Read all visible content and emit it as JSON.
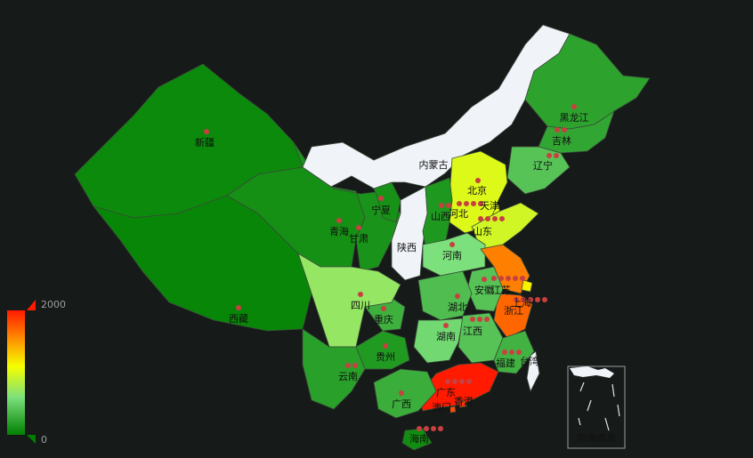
{
  "title": "",
  "colors": {
    "background": "#161a18",
    "range_high": "#ff1a00",
    "range_mid": "#f5ff00",
    "range_low": "#008000",
    "zero_value": "#f0f3f8",
    "dot": "#c84040"
  },
  "visual_map": {
    "max_label": "2000",
    "min_label": "0",
    "min": 0,
    "max": 2000,
    "placement": "bottom-left"
  },
  "inset": {
    "label": "南海诸岛"
  },
  "chart_data": {
    "type": "map",
    "region": "china",
    "provinces": [
      {
        "name": "新疆",
        "value": 60
      },
      {
        "name": "西藏",
        "value": 40
      },
      {
        "name": "青海",
        "value": 100
      },
      {
        "name": "甘肃",
        "value": 120
      },
      {
        "name": "宁夏",
        "value": 110
      },
      {
        "name": "内蒙古",
        "value": 0
      },
      {
        "name": "陕西",
        "value": 0
      },
      {
        "name": "黑龙江",
        "value": 220
      },
      {
        "name": "吉林",
        "value": 240
      },
      {
        "name": "辽宁",
        "value": 420
      },
      {
        "name": "北京",
        "value": 1100
      },
      {
        "name": "天津",
        "value": 1050
      },
      {
        "name": "河北",
        "value": 1000
      },
      {
        "name": "山西",
        "value": 150
      },
      {
        "name": "山东",
        "value": 950
      },
      {
        "name": "河南",
        "value": 600
      },
      {
        "name": "江苏",
        "value": 1600
      },
      {
        "name": "上海",
        "value": 1150
      },
      {
        "name": "浙江",
        "value": 1700
      },
      {
        "name": "安徽",
        "value": 420
      },
      {
        "name": "湖北",
        "value": 380
      },
      {
        "name": "湖南",
        "value": 550
      },
      {
        "name": "江西",
        "value": 420
      },
      {
        "name": "福建",
        "value": 320
      },
      {
        "name": "台湾",
        "value": 0
      },
      {
        "name": "广东",
        "value": 2000
      },
      {
        "name": "广西",
        "value": 280
      },
      {
        "name": "海南",
        "value": 80
      },
      {
        "name": "重庆",
        "value": 300
      },
      {
        "name": "四川",
        "value": 700
      },
      {
        "name": "贵州",
        "value": 160
      },
      {
        "name": "云南",
        "value": 200
      },
      {
        "name": "香港",
        "value": 1900
      },
      {
        "name": "澳门",
        "value": 1800
      }
    ]
  }
}
